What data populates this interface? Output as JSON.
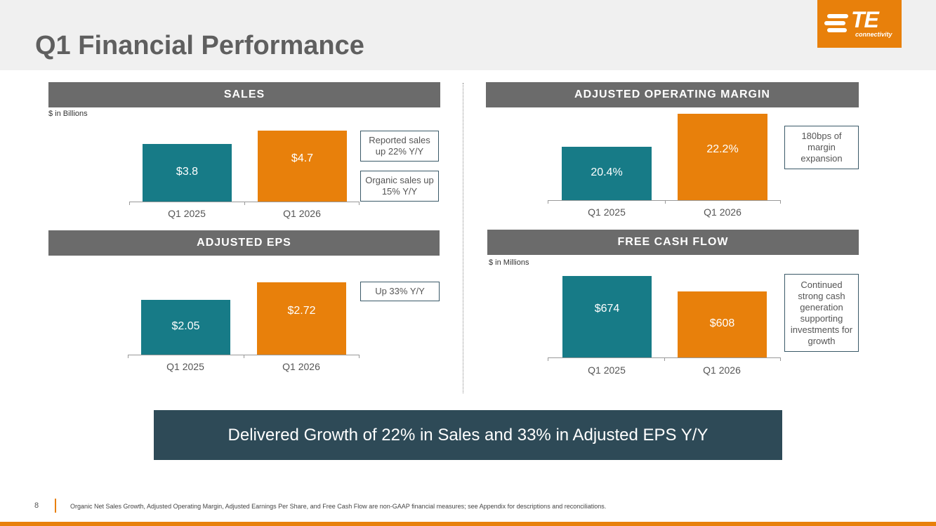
{
  "title": "Q1 Financial Performance",
  "logo": {
    "word": "TE",
    "sub": "connectivity"
  },
  "colors": {
    "teal": "#177b87",
    "orange": "#e8800b",
    "header_gray": "#6b6b6b",
    "banner": "#2e4a57"
  },
  "chart_data": [
    {
      "type": "bar",
      "id": "sales",
      "title": "SALES",
      "unit_note": "$ in Billions",
      "categories": [
        "Q1 2025",
        "Q1 2026"
      ],
      "values": [
        3.8,
        4.7
      ],
      "data_labels": [
        "$3.8",
        "$4.7"
      ],
      "callouts": [
        "Reported sales up 22% Y/Y",
        "Organic sales up 15% Y/Y"
      ]
    },
    {
      "type": "bar",
      "id": "margin",
      "title": "ADJUSTED OPERATING MARGIN",
      "unit_note": "",
      "categories": [
        "Q1 2025",
        "Q1 2026"
      ],
      "values": [
        20.4,
        22.2
      ],
      "data_labels": [
        "20.4%",
        "22.2%"
      ],
      "callouts": [
        "180bps of margin expansion"
      ]
    },
    {
      "type": "bar",
      "id": "eps",
      "title": "ADJUSTED EPS",
      "unit_note": "",
      "categories": [
        "Q1 2025",
        "Q1 2026"
      ],
      "values": [
        2.05,
        2.72
      ],
      "data_labels": [
        "$2.05",
        "$2.72"
      ],
      "callouts": [
        "Up 33% Y/Y"
      ]
    },
    {
      "type": "bar",
      "id": "fcf",
      "title": "FREE CASH FLOW",
      "unit_note": "$ in Millions",
      "categories": [
        "Q1 2025",
        "Q1 2026"
      ],
      "values": [
        674,
        608
      ],
      "data_labels": [
        "$674",
        "$608"
      ],
      "callouts": [
        "Continued strong cash generation supporting investments for growth"
      ]
    }
  ],
  "banner": "Delivered Growth of 22% in Sales and 33% in Adjusted EPS Y/Y",
  "footer": {
    "page": "8",
    "note": "Organic Net Sales Growth, Adjusted Operating Margin, Adjusted Earnings Per Share, and Free Cash Flow are non-GAAP financial measures; see Appendix for descriptions and reconciliations."
  }
}
